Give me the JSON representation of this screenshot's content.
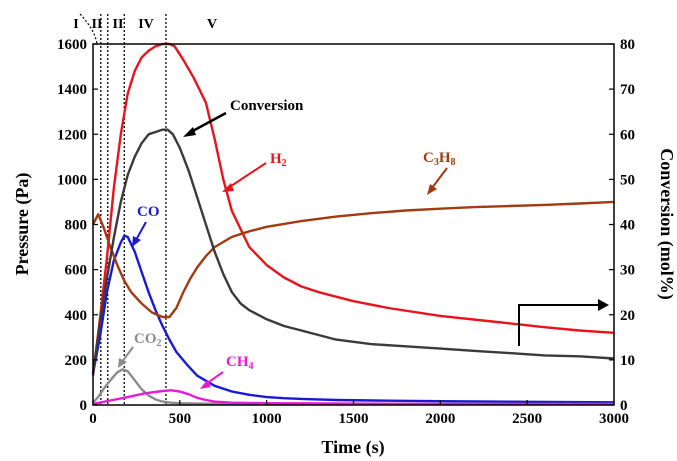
{
  "chart_data": {
    "type": "line",
    "xlabel": "Time (s)",
    "ylabel": "Pressure (Pa)",
    "y2label": "Conversion (mol%)",
    "xlim": [
      0,
      3000
    ],
    "ylim": [
      0,
      1600
    ],
    "y2lim": [
      0,
      80
    ],
    "x_ticks": [
      "0",
      "500",
      "1000",
      "1500",
      "2000",
      "2500",
      "3000"
    ],
    "y_ticks": [
      "0",
      "200",
      "400",
      "600",
      "800",
      "1000",
      "1200",
      "1400",
      "1600"
    ],
    "y2_ticks": [
      "0",
      "10",
      "20",
      "30",
      "40",
      "50",
      "60",
      "70",
      "80"
    ],
    "grid": false,
    "legend": "none",
    "stage_boundaries": [
      45,
      85,
      180,
      420
    ],
    "stages": [
      "I",
      "II",
      "II",
      "IV",
      "V"
    ],
    "series": [
      {
        "name": "H2",
        "axis": "left",
        "color": "#e8141c",
        "x": [
          0,
          40,
          80,
          120,
          160,
          200,
          240,
          280,
          320,
          360,
          400,
          440,
          470,
          520,
          580,
          650,
          700,
          750,
          800,
          900,
          1000,
          1100,
          1200,
          1300,
          1400,
          1500,
          1700,
          2000,
          2300,
          2600,
          2800,
          3000
        ],
        "y": [
          130,
          380,
          650,
          960,
          1200,
          1380,
          1480,
          1540,
          1570,
          1590,
          1600,
          1600,
          1590,
          1530,
          1450,
          1340,
          1180,
          1000,
          860,
          700,
          620,
          565,
          525,
          500,
          480,
          460,
          430,
          395,
          370,
          345,
          330,
          320
        ]
      },
      {
        "name": "CO",
        "axis": "left",
        "color": "#1a1ad6",
        "x": [
          0,
          40,
          80,
          120,
          160,
          180,
          200,
          240,
          280,
          320,
          360,
          400,
          440,
          480,
          540,
          600,
          700,
          800,
          900,
          1000,
          1100,
          1200,
          1400,
          1700,
          2000,
          2500,
          3000
        ],
        "y": [
          140,
          300,
          500,
          640,
          720,
          750,
          745,
          680,
          590,
          500,
          420,
          350,
          290,
          235,
          180,
          130,
          85,
          60,
          45,
          35,
          30,
          27,
          22,
          19,
          17,
          14,
          12
        ]
      },
      {
        "name": "C3H8",
        "axis": "left",
        "color": "#a23b12",
        "x": [
          0,
          30,
          60,
          100,
          140,
          180,
          220,
          280,
          340,
          400,
          440,
          480,
          520,
          560,
          600,
          650,
          700,
          800,
          900,
          1000,
          1200,
          1400,
          1600,
          1800,
          2000,
          2200,
          2400,
          2600,
          2800,
          3000
        ],
        "y": [
          800,
          845,
          790,
          700,
          620,
          550,
          500,
          450,
          410,
          390,
          390,
          430,
          500,
          560,
          610,
          660,
          700,
          745,
          770,
          790,
          815,
          835,
          850,
          862,
          870,
          877,
          882,
          887,
          893,
          900
        ]
      },
      {
        "name": "CO2",
        "axis": "left",
        "color": "#8c8c8c",
        "x": [
          0,
          30,
          60,
          100,
          140,
          170,
          200,
          240,
          280,
          320,
          360,
          400,
          450,
          500,
          600,
          800,
          1000,
          1500,
          2000,
          2500,
          3000
        ],
        "y": [
          10,
          35,
          70,
          110,
          145,
          158,
          150,
          110,
          70,
          42,
          25,
          15,
          10,
          8,
          6,
          5,
          4,
          4,
          4,
          4,
          4
        ]
      },
      {
        "name": "CH4",
        "axis": "left",
        "color": "#e81ad6",
        "x": [
          0,
          100,
          200,
          300,
          400,
          450,
          500,
          550,
          600,
          650,
          700,
          800,
          1000,
          1500,
          2000,
          2500,
          3000
        ],
        "y": [
          5,
          20,
          35,
          52,
          62,
          65,
          60,
          48,
          32,
          22,
          15,
          10,
          8,
          6,
          5,
          5,
          4
        ]
      },
      {
        "name": "Conversion",
        "axis": "right",
        "color": "#3a3a3a",
        "x": [
          0,
          40,
          80,
          120,
          160,
          200,
          240,
          280,
          320,
          360,
          400,
          430,
          460,
          500,
          550,
          600,
          650,
          700,
          750,
          800,
          850,
          900,
          1000,
          1100,
          1200,
          1400,
          1600,
          1800,
          2000,
          2200,
          2400,
          2600,
          2800,
          3000
        ],
        "y": [
          7,
          18,
          28,
          37,
          45,
          51,
          55,
          58,
          60,
          60.5,
          61,
          61,
          60,
          57,
          52,
          46,
          40,
          34,
          29,
          25,
          22.5,
          21,
          19,
          17.5,
          16.5,
          14.5,
          13.5,
          13,
          12.5,
          12,
          11.5,
          11,
          10.8,
          10.3
        ]
      }
    ],
    "annotations": [
      {
        "text": "Conversion",
        "color": "#000000"
      },
      {
        "text": "H2",
        "color": "#e8141c"
      },
      {
        "text": "C3H8",
        "color": "#a23b12"
      },
      {
        "text": "CO",
        "color": "#1a1ad6"
      },
      {
        "text": "CO2",
        "color": "#8c8c8c"
      },
      {
        "text": "CH4",
        "color": "#e81ad6"
      }
    ]
  }
}
